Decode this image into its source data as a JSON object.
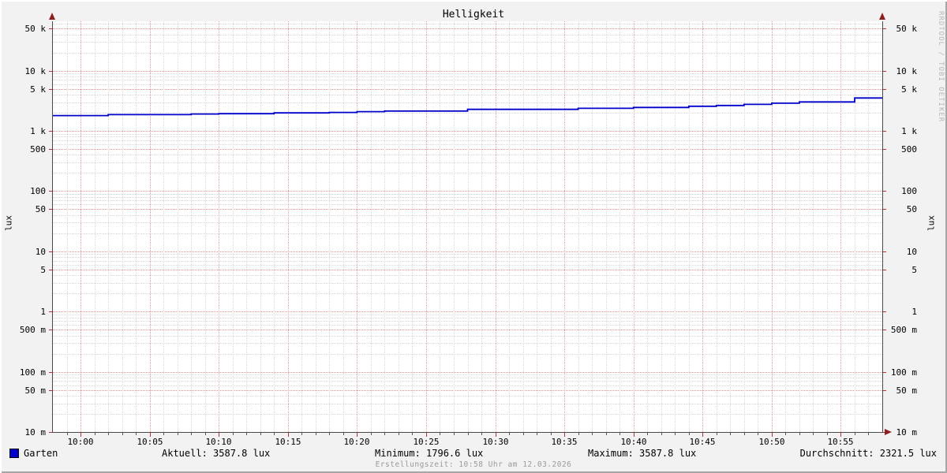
{
  "title": "Helligkeit",
  "y_unit": "lux",
  "watermark": "RRDTOOL / TOBI OETIKER",
  "footer": "Erstellungszeit: 10:58 Uhr am 12.03.2026",
  "legend": {
    "name": "Garten",
    "swatch_color": "#0000cc"
  },
  "stats": [
    {
      "text": "Aktuell: 3587.8 lux"
    },
    {
      "text": "Minimum: 1796.6 lux"
    },
    {
      "text": "Maximum: 3587.8 lux"
    },
    {
      "text": "Durchschnitt: 2321.5 lux"
    }
  ],
  "colors": {
    "background": "#f2f2f2",
    "plot_background": "#ffffff",
    "grid_minor": "#d6d6d6",
    "grid_major": "#e88f8f",
    "axis": "#4a4a4a",
    "arrow": "#8f2020",
    "line": "#0000cc"
  },
  "chart_data": {
    "type": "line",
    "title": "Helligkeit",
    "xlabel": "",
    "ylabel": "lux",
    "y_scale": "log",
    "ylim": [
      0.01,
      66000
    ],
    "x_start": "09:58",
    "x_end": "10:58",
    "grid": true,
    "legend_position": "bottom",
    "y_ticks": [
      {
        "value": 0.01,
        "label": "10 m"
      },
      {
        "value": 0.05,
        "label": "50 m"
      },
      {
        "value": 0.1,
        "label": "100 m"
      },
      {
        "value": 0.5,
        "label": "500 m"
      },
      {
        "value": 1,
        "label": "1"
      },
      {
        "value": 5,
        "label": "5"
      },
      {
        "value": 10,
        "label": "10"
      },
      {
        "value": 50,
        "label": "50"
      },
      {
        "value": 100,
        "label": "100"
      },
      {
        "value": 500,
        "label": "500"
      },
      {
        "value": 1000,
        "label": "1 k"
      },
      {
        "value": 5000,
        "label": "5 k"
      },
      {
        "value": 10000,
        "label": "10 k"
      },
      {
        "value": 50000,
        "label": "50 k"
      }
    ],
    "x_tick_labels": [
      "10:00",
      "10:05",
      "10:10",
      "10:15",
      "10:20",
      "10:25",
      "10:30",
      "10:35",
      "10:40",
      "10:45",
      "10:50",
      "10:55"
    ],
    "series": [
      {
        "name": "Garten",
        "color": "#0000cc",
        "unit": "lux",
        "aktuell": 3587.8,
        "minimum": 1796.6,
        "maximum": 3587.8,
        "durchschnitt": 2321.5,
        "points": [
          [
            "09:58",
            1796.6
          ],
          [
            "10:02",
            1860
          ],
          [
            "10:08",
            1905
          ],
          [
            "10:10",
            1930
          ],
          [
            "10:14",
            1990
          ],
          [
            "10:18",
            2025
          ],
          [
            "10:20",
            2085
          ],
          [
            "10:22",
            2130
          ],
          [
            "10:28",
            2275
          ],
          [
            "10:36",
            2370
          ],
          [
            "10:40",
            2445
          ],
          [
            "10:44",
            2560
          ],
          [
            "10:46",
            2640
          ],
          [
            "10:48",
            2750
          ],
          [
            "10:50",
            2885
          ],
          [
            "10:52",
            3020
          ],
          [
            "10:56",
            3515
          ],
          [
            "10:58",
            3587.8
          ]
        ]
      }
    ]
  }
}
